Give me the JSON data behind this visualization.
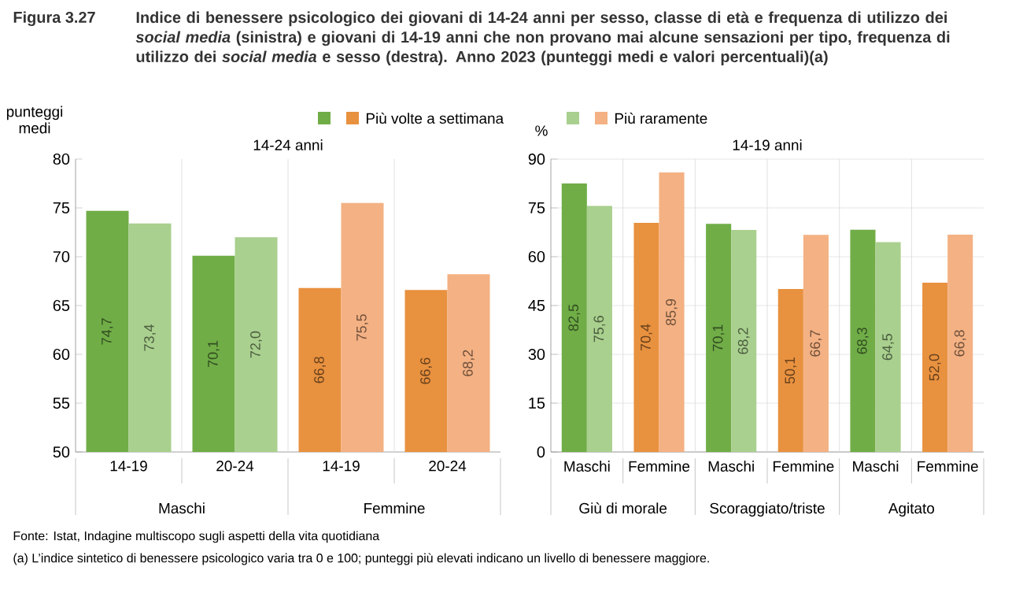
{
  "chart_data": [
    {
      "type": "bar",
      "title": "14-24 anni",
      "subtitle": "Indice di benessere psicologico dei giovani di 14-24 anni per sesso, classe di età e frequenza di utilizzo dei *social media* (sinistra) e giovani di 14-19 anni che non provano mai alcune sensazioni per tipo, frequenza di utilizzo dei *social media* e sesso (destra). Anno 2023 (punteggi medi e valori percentuali)(a)",
      "ylabel": "punteggi medi",
      "categories": [
        "14-19",
        "20-24",
        "14-19",
        "20-24"
      ],
      "series": [
        {
          "name": "Più volte a settimana",
          "colors": [
            "#70ad47",
            "#70ad47",
            "#e8913f",
            "#e8913f"
          ],
          "values": [
            74.7,
            70.1,
            66.8,
            66.6
          ],
          "value_labels": [
            "74,7",
            "70,1",
            "66,8",
            "66,6"
          ]
        },
        {
          "name": "Più raramente",
          "colors": [
            "#a9d08e",
            "#a9d08e",
            "#f4b183",
            "#f4b183"
          ],
          "values": [
            73.4,
            72.0,
            75.5,
            68.2
          ],
          "value_labels": [
            "73,4",
            "72,0",
            "75,5",
            "68,2"
          ]
        }
      ],
      "ylim": [
        50,
        80
      ],
      "yticks": [
        50,
        55,
        60,
        65,
        70,
        75,
        80
      ],
      "grid": false,
      "legend": "top",
      "annotations": [
        "Figura 3.27",
        "Maschi",
        "Femmine",
        "Fonte: Istat, Indagine multiscopo sugli aspetti della vita quotidiana",
        "(a) L’indice sintetico di benessere psicologico varia tra 0 e 100; punteggi più elevati indicano un livello di benessere maggiore."
      ]
    },
    {
      "type": "bar",
      "title": "14-19 anni",
      "ylabel": "%",
      "categories": [
        "Maschi",
        "Femmine",
        "Maschi",
        "Femmine",
        "Maschi",
        "Femmine"
      ],
      "series": [
        {
          "colors": [
            "#70ad47",
            "#e8913f",
            "#70ad47",
            "#e8913f",
            "#70ad47",
            "#e8913f"
          ],
          "values": [
            82.5,
            70.4,
            70.1,
            50.1,
            68.3,
            52.0
          ],
          "value_labels": [
            "82,5",
            "70,4",
            "70,1",
            "50,1",
            "68,3",
            "52,0"
          ]
        },
        {
          "colors": [
            "#a9d08e",
            "#f4b183",
            "#a9d08e",
            "#f4b183",
            "#a9d08e",
            "#f4b183"
          ],
          "values": [
            75.6,
            85.9,
            68.2,
            66.7,
            64.5,
            66.8
          ],
          "value_labels": [
            "75,6",
            "85,9",
            "68,2",
            "66,7",
            "64,5",
            "66,8"
          ]
        }
      ],
      "ylim": [
        0,
        90
      ],
      "yticks": [
        0,
        15,
        30,
        45,
        60,
        75,
        90
      ],
      "grid": "y",
      "annotations": [
        "Giù di morale",
        "Scoraggiato/triste",
        "Agitato"
      ]
    }
  ]
}
